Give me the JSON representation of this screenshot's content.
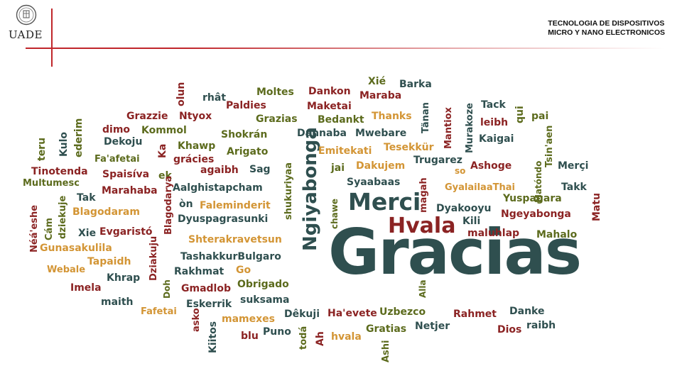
{
  "header": {
    "brand": "UADE",
    "title_line1": "TECNOLOGIA DE DISPOSITIVOS",
    "title_line2": "MICRO Y NANO ELECTRONICOS"
  },
  "colors": {
    "teal": "#2f4f4f",
    "red": "#8b2323",
    "olive": "#5c6b1d",
    "gold": "#b8860b",
    "orange": "#d39535",
    "accent_red": "#c0262b"
  },
  "word_cloud": {
    "words": [
      {
        "text": "Gracias",
        "color": "teal"
      },
      {
        "text": "Merci",
        "color": "teal"
      },
      {
        "text": "Hvala",
        "color": "red"
      },
      {
        "text": "Ngiyabonga",
        "color": "teal"
      },
      {
        "text": "Moltes",
        "color": "olive"
      },
      {
        "text": "Dankon",
        "color": "red"
      },
      {
        "text": "Xié",
        "color": "olive"
      },
      {
        "text": "Barka",
        "color": "teal"
      },
      {
        "text": "Maraba",
        "color": "red"
      },
      {
        "text": "Tack",
        "color": "teal"
      },
      {
        "text": "rhât",
        "color": "teal"
      },
      {
        "text": "olun",
        "color": "red"
      },
      {
        "text": "Paldies",
        "color": "red"
      },
      {
        "text": "Maketai",
        "color": "red"
      },
      {
        "text": "Grazzie",
        "color": "red"
      },
      {
        "text": "Ntyox",
        "color": "red"
      },
      {
        "text": "Grazias",
        "color": "olive"
      },
      {
        "text": "Bedankt",
        "color": "olive"
      },
      {
        "text": "Thanks",
        "color": "orange"
      },
      {
        "text": "Tänan",
        "color": "teal"
      },
      {
        "text": "Murakoze",
        "color": "teal"
      },
      {
        "text": "Mantiox",
        "color": "red"
      },
      {
        "text": "leibh",
        "color": "red"
      },
      {
        "text": "qui",
        "color": "olive"
      },
      {
        "text": "pai",
        "color": "olive"
      },
      {
        "text": "dimo",
        "color": "red"
      },
      {
        "text": "Kommol",
        "color": "olive"
      },
      {
        "text": "Shokrán",
        "color": "olive"
      },
      {
        "text": "Dannaba",
        "color": "teal"
      },
      {
        "text": "Mwebare",
        "color": "teal"
      },
      {
        "text": "Kaigai",
        "color": "teal"
      },
      {
        "text": "Dekoju",
        "color": "teal"
      },
      {
        "text": "Khawp",
        "color": "olive"
      },
      {
        "text": "Tesekkür",
        "color": "orange"
      },
      {
        "text": "Tsin'aen",
        "color": "olive"
      },
      {
        "text": "teru",
        "color": "olive"
      },
      {
        "text": "Kulo",
        "color": "teal"
      },
      {
        "text": "ederim",
        "color": "olive"
      },
      {
        "text": "Fa'afetai",
        "color": "olive"
      },
      {
        "text": "Arigato",
        "color": "olive"
      },
      {
        "text": "Emitekati",
        "color": "orange"
      },
      {
        "text": "Ka",
        "color": "red"
      },
      {
        "text": "shukuriyaa",
        "color": "olive"
      },
      {
        "text": "Matóndo",
        "color": "olive"
      },
      {
        "text": "Tinotenda",
        "color": "red"
      },
      {
        "text": "grácies",
        "color": "red"
      },
      {
        "text": "agaibh",
        "color": "red"
      },
      {
        "text": "Sag",
        "color": "teal"
      },
      {
        "text": "jai",
        "color": "olive"
      },
      {
        "text": "Dakujem",
        "color": "orange"
      },
      {
        "text": "Trugarez",
        "color": "teal"
      },
      {
        "text": "so",
        "color": "orange"
      },
      {
        "text": "Ashoge",
        "color": "red"
      },
      {
        "text": "Merçi",
        "color": "teal"
      },
      {
        "text": "Multumesc",
        "color": "olive"
      },
      {
        "text": "Spaisíva",
        "color": "red"
      },
      {
        "text": "ek",
        "color": "olive"
      },
      {
        "text": "Aalghistapcham",
        "color": "teal"
      },
      {
        "text": "Syaabaas",
        "color": "teal"
      },
      {
        "text": "GyalailaaThai",
        "color": "orange"
      },
      {
        "text": "Takk",
        "color": "teal"
      },
      {
        "text": "Tak",
        "color": "teal"
      },
      {
        "text": "Marahaba",
        "color": "red"
      },
      {
        "text": "Yuspagara",
        "color": "olive"
      },
      {
        "text": "Matu",
        "color": "red"
      },
      {
        "text": "Blagodaram",
        "color": "orange"
      },
      {
        "text": "òn",
        "color": "teal"
      },
      {
        "text": "Faleminderit",
        "color": "orange"
      },
      {
        "text": "chawe",
        "color": "olive"
      },
      {
        "text": "magah",
        "color": "red"
      },
      {
        "text": "Dyakooyu",
        "color": "teal"
      },
      {
        "text": "Néá'eshe",
        "color": "red"
      },
      {
        "text": "Cám",
        "color": "olive"
      },
      {
        "text": "dziekuje",
        "color": "olive"
      },
      {
        "text": "Blagodarya",
        "color": "red"
      },
      {
        "text": "Dyuspagrasunki",
        "color": "teal"
      },
      {
        "text": "Kili",
        "color": "teal"
      },
      {
        "text": "Ngeyabonga",
        "color": "red"
      },
      {
        "text": "Xie",
        "color": "teal"
      },
      {
        "text": "Evgaristó",
        "color": "red"
      },
      {
        "text": "maluhlap",
        "color": "red"
      },
      {
        "text": "Mahalo",
        "color": "olive"
      },
      {
        "text": "Shterakravetsun",
        "color": "orange"
      },
      {
        "text": "Gunasakulila",
        "color": "orange"
      },
      {
        "text": "Dziakuju",
        "color": "red"
      },
      {
        "text": "TashakkurBulgaro",
        "color": "teal"
      },
      {
        "text": "Tapaidh",
        "color": "orange"
      },
      {
        "text": "Webale",
        "color": "orange"
      },
      {
        "text": "Rakhmat",
        "color": "teal"
      },
      {
        "text": "Go",
        "color": "orange"
      },
      {
        "text": "Khrap",
        "color": "teal"
      },
      {
        "text": "Doh",
        "color": "olive"
      },
      {
        "text": "Imela",
        "color": "red"
      },
      {
        "text": "Obrigado",
        "color": "olive"
      },
      {
        "text": "Gmadlob",
        "color": "red"
      },
      {
        "text": "Alla",
        "color": "olive"
      },
      {
        "text": "suksama",
        "color": "teal"
      },
      {
        "text": "maith",
        "color": "teal"
      },
      {
        "text": "Fafetai",
        "color": "orange"
      },
      {
        "text": "Eskerrik",
        "color": "teal"
      },
      {
        "text": "Dêkuji",
        "color": "teal"
      },
      {
        "text": "Ha'evete",
        "color": "red"
      },
      {
        "text": "Uzbezco",
        "color": "olive"
      },
      {
        "text": "Rahmet",
        "color": "red"
      },
      {
        "text": "Danke",
        "color": "teal"
      },
      {
        "text": "asko",
        "color": "red"
      },
      {
        "text": "mamexes",
        "color": "orange"
      },
      {
        "text": "Ah",
        "color": "red"
      },
      {
        "text": "Gratias",
        "color": "olive"
      },
      {
        "text": "Netjer",
        "color": "teal"
      },
      {
        "text": "Dios",
        "color": "red"
      },
      {
        "text": "raibh",
        "color": "teal"
      },
      {
        "text": "Kiitos",
        "color": "teal"
      },
      {
        "text": "blu",
        "color": "red"
      },
      {
        "text": "Puno",
        "color": "teal"
      },
      {
        "text": "todá",
        "color": "olive"
      },
      {
        "text": "hvala",
        "color": "orange"
      },
      {
        "text": "Ashi",
        "color": "olive"
      }
    ]
  }
}
